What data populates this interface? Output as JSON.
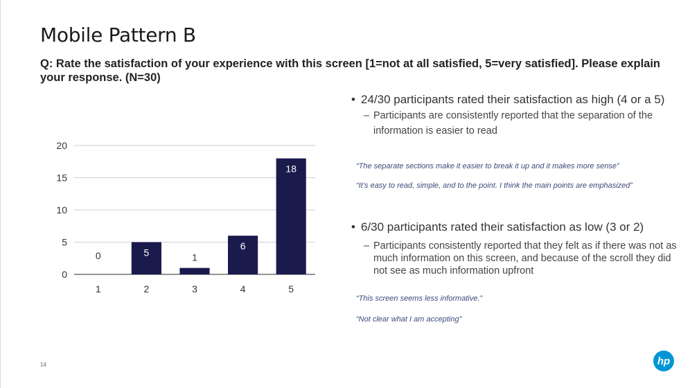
{
  "slide": {
    "title": "Mobile Pattern B",
    "question": "Q: Rate the satisfaction of your experience with this screen [1=not at all satisfied, 5=very satisfied]. Please explain your response.  (N=30)",
    "page_number": "14"
  },
  "findings": {
    "high": {
      "bullet": "24/30 participants rated their satisfaction as high (4 or a 5)",
      "detail": "Participants are consistently reported that the separation of the information is easier to read",
      "quotes": [
        "“The separate sections make it easier to break it up and it makes more sense”",
        "“It’s easy to read, simple, and to the point. I think the main points are emphasized”"
      ]
    },
    "low": {
      "bullet": "6/30 participants rated their satisfaction as low (3 or 2)",
      "detail": "Participants consistently reported that they felt as if there was not as much information on this screen, and because of the scroll they did not see as much information upfront",
      "quotes": [
        "“This screen seems less informative.”",
        "“Not clear what I am accepting”"
      ]
    }
  },
  "logo": {
    "text": "hp",
    "color": "#0096d6"
  },
  "chart_data": {
    "type": "bar",
    "categories": [
      "1",
      "2",
      "3",
      "4",
      "5"
    ],
    "values": [
      0,
      5,
      1,
      6,
      18
    ],
    "data_labels": [
      "0",
      "5",
      "1",
      "6",
      "18"
    ],
    "ylim": [
      0,
      20
    ],
    "yticks": [
      "0",
      "5",
      "10",
      "15",
      "20"
    ],
    "grid": true,
    "bar_color": "#1b1a4c"
  }
}
